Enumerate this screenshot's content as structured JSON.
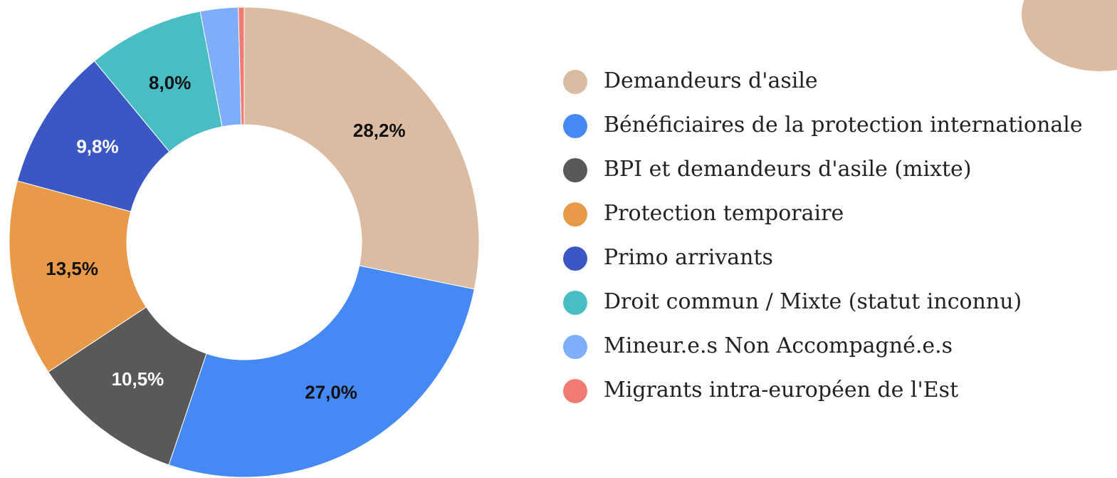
{
  "chart_data": {
    "type": "donut",
    "categories": [
      "Demandeurs d'asile",
      "Bénéficiaires de la protection internationale",
      "BPI et demandeurs d'asile (mixte)",
      "Protection temporaire",
      "Primo arrivants",
      "Droit commun / Mixte (statut inconnu)",
      "Mineur.e.s Non Accompagné.e.s",
      "Migrants intra-européen de l'Est"
    ],
    "values": [
      28.2,
      27.0,
      10.5,
      13.5,
      9.8,
      8.0,
      2.6,
      0.4
    ],
    "value_labels": [
      "28,2%",
      "27,0%",
      "10,5%",
      "13,5%",
      "9,8%",
      "8,0%",
      null,
      null
    ],
    "colors": [
      "#dbbca3",
      "#4589f5",
      "#595959",
      "#e99a48",
      "#3a57c4",
      "#48bdc5",
      "#7eaef9",
      "#ef7b73"
    ]
  }
}
